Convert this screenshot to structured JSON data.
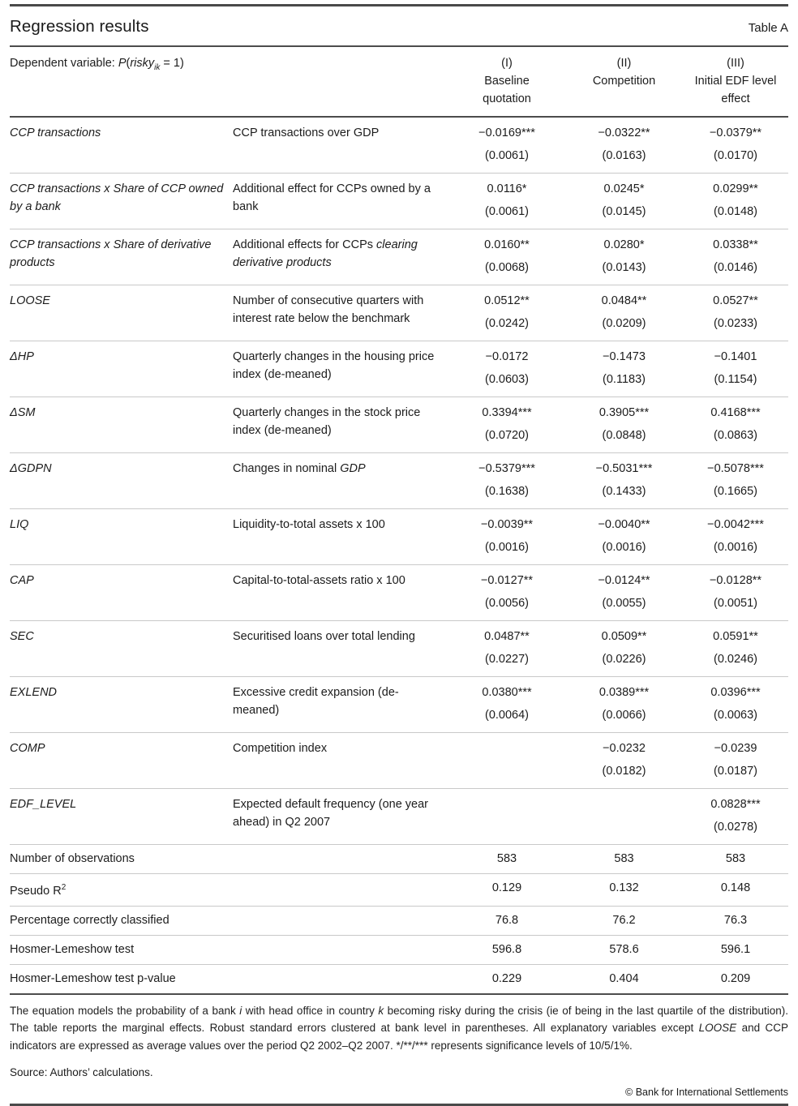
{
  "title": "Regression results",
  "table_label": "Table A",
  "colors": {
    "rule_dark": "#4a4a4a",
    "rule_light": "#c9c9c9",
    "text": "#1c1c1c",
    "background": "#ffffff"
  },
  "table": {
    "dep_var": [
      {
        "t": "Dependent variable: "
      },
      {
        "t": "P",
        "i": true
      },
      {
        "t": "("
      },
      {
        "t": "risky",
        "i": true
      },
      {
        "t": "ik",
        "i": true,
        "sub": true
      },
      {
        "t": " = 1)"
      }
    ],
    "columns": [
      {
        "num": "(I)",
        "line1": "Baseline",
        "line2": "quotation"
      },
      {
        "num": "(II)",
        "line1": "Competition",
        "line2": ""
      },
      {
        "num": "(III)",
        "line1": "Initial EDF level",
        "line2": "effect"
      }
    ],
    "rows": [
      {
        "label": [
          {
            "t": "CCP transactions",
            "i": true
          }
        ],
        "desc": [
          {
            "t": "CCP transactions over GDP"
          }
        ],
        "m1": {
          "coef": "−0.0169***",
          "se": "(0.0061)"
        },
        "m2": {
          "coef": "−0.0322**",
          "se": "(0.0163)"
        },
        "m3": {
          "coef": "−0.0379**",
          "se": "(0.0170)"
        }
      },
      {
        "label": [
          {
            "t": "CCP transactions x Share of CCP owned by a bank",
            "i": true
          }
        ],
        "desc": [
          {
            "t": "Additional effect for CCPs owned by a bank"
          }
        ],
        "m1": {
          "coef": "0.0116*",
          "se": "(0.0061)"
        },
        "m2": {
          "coef": "0.0245*",
          "se": "(0.0145)"
        },
        "m3": {
          "coef": "0.0299**",
          "se": "(0.0148)"
        }
      },
      {
        "label": [
          {
            "t": "CCP transactions x Share of derivative products",
            "i": true
          }
        ],
        "desc": [
          {
            "t": "Additional effects for CCPs "
          },
          {
            "t": "clearing derivative products",
            "i": true
          }
        ],
        "m1": {
          "coef": "0.0160**",
          "se": "(0.0068)"
        },
        "m2": {
          "coef": "0.0280*",
          "se": "(0.0143)"
        },
        "m3": {
          "coef": "0.0338**",
          "se": "(0.0146)"
        }
      },
      {
        "label": [
          {
            "t": "LOOSE",
            "i": true
          }
        ],
        "desc": [
          {
            "t": "Number of consecutive quarters with interest rate below the benchmark"
          }
        ],
        "m1": {
          "coef": "0.0512**",
          "se": "(0.0242)"
        },
        "m2": {
          "coef": "0.0484**",
          "se": "(0.0209)"
        },
        "m3": {
          "coef": "0.0527**",
          "se": "(0.0233)"
        }
      },
      {
        "label": [
          {
            "t": "ΔHP",
            "i": true
          }
        ],
        "desc": [
          {
            "t": "Quarterly changes in the housing price index (de-meaned)"
          }
        ],
        "m1": {
          "coef": "−0.0172",
          "se": "(0.0603)"
        },
        "m2": {
          "coef": "−0.1473",
          "se": "(0.1183)"
        },
        "m3": {
          "coef": "−0.1401",
          "se": "(0.1154)"
        }
      },
      {
        "label": [
          {
            "t": "ΔSM",
            "i": true
          }
        ],
        "desc": [
          {
            "t": "Quarterly changes in the stock price index (de-meaned)"
          }
        ],
        "m1": {
          "coef": "0.3394***",
          "se": "(0.0720)"
        },
        "m2": {
          "coef": "0.3905***",
          "se": "(0.0848)"
        },
        "m3": {
          "coef": "0.4168***",
          "se": "(0.0863)"
        }
      },
      {
        "label": [
          {
            "t": "ΔGDPN",
            "i": true
          }
        ],
        "desc": [
          {
            "t": "Changes in nominal "
          },
          {
            "t": "GDP",
            "i": true
          }
        ],
        "m1": {
          "coef": "−0.5379***",
          "se": "(0.1638)"
        },
        "m2": {
          "coef": "−0.5031***",
          "se": "(0.1433)"
        },
        "m3": {
          "coef": "−0.5078***",
          "se": "(0.1665)"
        }
      },
      {
        "label": [
          {
            "t": "LIQ",
            "i": true
          }
        ],
        "desc": [
          {
            "t": "Liquidity-to-total assets x 100"
          }
        ],
        "m1": {
          "coef": "−0.0039**",
          "se": "(0.0016)"
        },
        "m2": {
          "coef": "−0.0040**",
          "se": "(0.0016)"
        },
        "m3": {
          "coef": "−0.0042***",
          "se": "(0.0016)"
        }
      },
      {
        "label": [
          {
            "t": "CAP",
            "i": true
          }
        ],
        "desc": [
          {
            "t": "Capital-to-total-assets ratio x 100"
          }
        ],
        "m1": {
          "coef": "−0.0127**",
          "se": "(0.0056)"
        },
        "m2": {
          "coef": "−0.0124**",
          "se": "(0.0055)"
        },
        "m3": {
          "coef": "−0.0128**",
          "se": "(0.0051)"
        }
      },
      {
        "label": [
          {
            "t": "SEC",
            "i": true
          }
        ],
        "desc": [
          {
            "t": "Securitised loans over total lending"
          }
        ],
        "m1": {
          "coef": "0.0487**",
          "se": "(0.0227)"
        },
        "m2": {
          "coef": "0.0509**",
          "se": "(0.0226)"
        },
        "m3": {
          "coef": "0.0591**",
          "se": "(0.0246)"
        }
      },
      {
        "label": [
          {
            "t": "EXLEND",
            "i": true
          }
        ],
        "desc": [
          {
            "t": "Excessive credit expansion (de-meaned)"
          }
        ],
        "m1": {
          "coef": "0.0380***",
          "se": "(0.0064)"
        },
        "m2": {
          "coef": "0.0389***",
          "se": "(0.0066)"
        },
        "m3": {
          "coef": "0.0396***",
          "se": "(0.0063)"
        }
      },
      {
        "label": [
          {
            "t": "COMP",
            "i": true
          }
        ],
        "desc": [
          {
            "t": "Competition index"
          }
        ],
        "m1": null,
        "m2": {
          "coef": "−0.0232",
          "se": "(0.0182)"
        },
        "m3": {
          "coef": "−0.0239",
          "se": "(0.0187)"
        }
      },
      {
        "label": [
          {
            "t": "EDF_LEVEL",
            "i": true
          }
        ],
        "desc": [
          {
            "t": "Expected default frequency (one year ahead) in Q2 2007"
          }
        ],
        "m1": null,
        "m2": null,
        "m3": {
          "coef": "0.0828***",
          "se": "(0.0278)"
        }
      }
    ],
    "stats": [
      {
        "label": [
          {
            "t": "Number of observations"
          }
        ],
        "v": [
          "583",
          "583",
          "583"
        ]
      },
      {
        "label": [
          {
            "t": "Pseudo R"
          },
          {
            "t": "2",
            "sup": true
          }
        ],
        "v": [
          "0.129",
          "0.132",
          "0.148"
        ]
      },
      {
        "label": [
          {
            "t": "Percentage correctly classified"
          }
        ],
        "v": [
          "76.8",
          "76.2",
          "76.3"
        ]
      },
      {
        "label": [
          {
            "t": "Hosmer-Lemeshow test"
          }
        ],
        "v": [
          "596.8",
          "578.6",
          "596.1"
        ]
      },
      {
        "label": [
          {
            "t": "Hosmer-Lemeshow test p-value"
          }
        ],
        "v": [
          "0.229",
          "0.404",
          "0.209"
        ]
      }
    ]
  },
  "footnote": [
    {
      "t": "The equation models the probability of a bank "
    },
    {
      "t": "i",
      "i": true
    },
    {
      "t": " with head office in country "
    },
    {
      "t": "k",
      "i": true
    },
    {
      "t": " becoming risky during the crisis (ie of being in the last quartile of the distribution). The table reports the marginal effects. Robust standard errors clustered at bank level in parentheses. All explanatory variables except "
    },
    {
      "t": "LOOSE",
      "i": true
    },
    {
      "t": " and CCP indicators are expressed as average values over the period Q2 2002–Q2 2007. */**/*** represents significance levels of 10/5/1%."
    }
  ],
  "source": "Source: Authors’ calculations.",
  "copyright": "© Bank for International Settlements"
}
